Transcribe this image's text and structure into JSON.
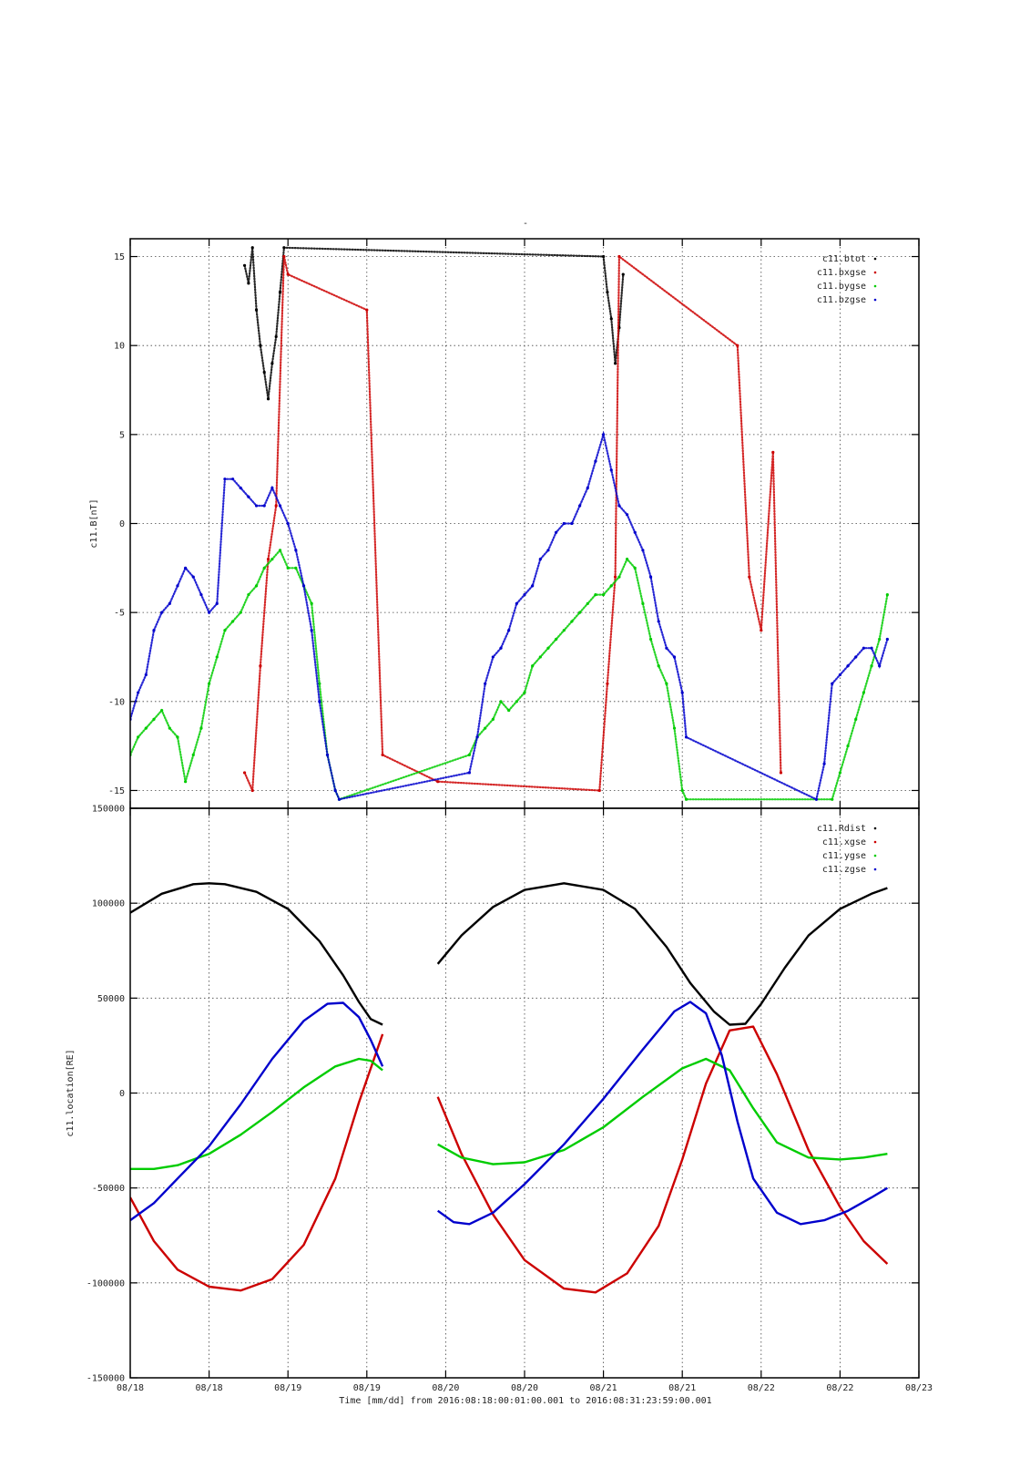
{
  "chart_data": [
    {
      "type": "scatter",
      "title": "-",
      "ylabel": "c11.B[nT]",
      "xlim": [
        0,
        10
      ],
      "ylim": [
        -16,
        16
      ],
      "yticks": [
        -15,
        -10,
        -5,
        0,
        5,
        10,
        15
      ],
      "xticks": [
        0,
        1,
        2,
        3,
        4,
        5,
        6,
        7,
        8,
        9,
        10
      ],
      "xtick_labels": [
        "08/18",
        "08/18",
        "08/19",
        "08/19",
        "08/20",
        "08/20",
        "08/21",
        "08/21",
        "08/22",
        "08/22",
        "08/23"
      ],
      "legend_position": "top-right",
      "grid": true,
      "series": [
        {
          "name": "c11.btot",
          "color": "#000000",
          "x": [
            1.45,
            1.5,
            1.55,
            1.6,
            1.65,
            1.7,
            1.75,
            1.8,
            1.85,
            1.9,
            1.95,
            6.0,
            6.05,
            6.1,
            6.15,
            6.2,
            6.25
          ],
          "y": [
            14.5,
            13.5,
            15.5,
            12.0,
            10.0,
            8.5,
            7.0,
            9.0,
            10.5,
            13.0,
            15.5,
            15.0,
            13.0,
            11.5,
            9.0,
            11.0,
            14.0
          ]
        },
        {
          "name": "c11.bxgse",
          "color": "#cc0000",
          "x": [
            1.45,
            1.55,
            1.65,
            1.75,
            1.85,
            1.95,
            2.0,
            3.0,
            3.2,
            3.9,
            5.95,
            6.05,
            6.15,
            6.2,
            7.7,
            7.85,
            8.0,
            8.15,
            8.25
          ],
          "y": [
            -14.0,
            -15.0,
            -8.0,
            -2.0,
            1.0,
            15.0,
            14.0,
            12.0,
            -13.0,
            -14.5,
            -15.0,
            -9.0,
            -3.0,
            15.0,
            10.0,
            -3.0,
            -6.0,
            4.0,
            -14.0
          ]
        },
        {
          "name": "c11.bygse",
          "color": "#00cc00",
          "x": [
            0.0,
            0.1,
            0.2,
            0.3,
            0.4,
            0.5,
            0.6,
            0.7,
            0.8,
            0.9,
            1.0,
            1.1,
            1.2,
            1.3,
            1.4,
            1.5,
            1.6,
            1.7,
            1.8,
            1.9,
            2.0,
            2.1,
            2.2,
            2.3,
            2.4,
            2.5,
            2.6,
            2.65,
            4.3,
            4.4,
            4.5,
            4.6,
            4.7,
            4.8,
            4.9,
            5.0,
            5.1,
            5.2,
            5.3,
            5.4,
            5.5,
            5.6,
            5.7,
            5.8,
            5.9,
            6.0,
            6.1,
            6.2,
            6.3,
            6.4,
            6.5,
            6.6,
            6.7,
            6.8,
            6.9,
            7.0,
            7.05,
            8.9,
            9.0,
            9.1,
            9.2,
            9.3,
            9.4,
            9.5,
            9.6
          ],
          "y": [
            -13.0,
            -12.0,
            -11.5,
            -11.0,
            -10.5,
            -11.5,
            -12.0,
            -14.5,
            -13.0,
            -11.5,
            -9.0,
            -7.5,
            -6.0,
            -5.5,
            -5.0,
            -4.0,
            -3.5,
            -2.5,
            -2.0,
            -1.5,
            -2.5,
            -2.5,
            -3.5,
            -4.5,
            -9.0,
            -13.0,
            -15.0,
            -15.5,
            -13.0,
            -12.0,
            -11.5,
            -11.0,
            -10.0,
            -10.5,
            -10.0,
            -9.5,
            -8.0,
            -7.5,
            -7.0,
            -6.5,
            -6.0,
            -5.5,
            -5.0,
            -4.5,
            -4.0,
            -4.0,
            -3.5,
            -3.0,
            -2.0,
            -2.5,
            -4.5,
            -6.5,
            -8.0,
            -9.0,
            -11.5,
            -15.0,
            -15.5,
            -15.5,
            -14.0,
            -12.5,
            -11.0,
            -9.5,
            -8.0,
            -6.5,
            -4.0
          ]
        },
        {
          "name": "c11.bzgse",
          "color": "#0000cc",
          "x": [
            0.0,
            0.1,
            0.2,
            0.3,
            0.4,
            0.5,
            0.6,
            0.7,
            0.8,
            0.9,
            1.0,
            1.1,
            1.2,
            1.3,
            1.4,
            1.5,
            1.6,
            1.7,
            1.8,
            1.9,
            2.0,
            2.1,
            2.2,
            2.3,
            2.4,
            2.5,
            2.6,
            2.65,
            4.3,
            4.4,
            4.5,
            4.6,
            4.7,
            4.8,
            4.9,
            5.0,
            5.1,
            5.2,
            5.3,
            5.4,
            5.5,
            5.6,
            5.7,
            5.8,
            5.9,
            6.0,
            6.1,
            6.2,
            6.3,
            6.4,
            6.5,
            6.6,
            6.7,
            6.8,
            6.9,
            7.0,
            7.05,
            8.7,
            8.8,
            8.9,
            9.0,
            9.1,
            9.2,
            9.3,
            9.4,
            9.5,
            9.6
          ],
          "y": [
            -11.0,
            -9.5,
            -8.5,
            -6.0,
            -5.0,
            -4.5,
            -3.5,
            -2.5,
            -3.0,
            -4.0,
            -5.0,
            -4.5,
            2.5,
            2.5,
            2.0,
            1.5,
            1.0,
            1.0,
            2.0,
            1.0,
            0.0,
            -1.5,
            -3.5,
            -6.0,
            -10.0,
            -13.0,
            -15.0,
            -15.5,
            -14.0,
            -12.0,
            -9.0,
            -7.5,
            -7.0,
            -6.0,
            -4.5,
            -4.0,
            -3.5,
            -2.0,
            -1.5,
            -0.5,
            0.0,
            0.0,
            1.0,
            2.0,
            3.5,
            5.0,
            3.0,
            1.0,
            0.5,
            -0.5,
            -1.5,
            -3.0,
            -5.5,
            -7.0,
            -7.5,
            -9.5,
            -12.0,
            -15.5,
            -13.5,
            -9.0,
            -8.5,
            -8.0,
            -7.5,
            -7.0,
            -7.0,
            -8.0,
            -6.5
          ]
        }
      ]
    },
    {
      "type": "line",
      "ylabel": "c11.location[RE]",
      "xlabel": "Time [mm/dd]  from 2016:08:18:00:01:00.001  to  2016:08:31:23:59:00.001",
      "xlim": [
        0,
        10
      ],
      "ylim": [
        -150000,
        150000
      ],
      "yticks": [
        -150000,
        -100000,
        -50000,
        0,
        50000,
        100000,
        150000
      ],
      "xticks": [
        0,
        1,
        2,
        3,
        4,
        5,
        6,
        7,
        8,
        9,
        10
      ],
      "xtick_labels": [
        "08/18",
        "08/18",
        "08/19",
        "08/19",
        "08/20",
        "08/20",
        "08/21",
        "08/21",
        "08/22",
        "08/22",
        "08/23"
      ],
      "legend_position": "top-right",
      "grid": true,
      "series": [
        {
          "name": "c11.Rdist",
          "color": "#000000",
          "segments": [
            {
              "x": [
                0.0,
                0.4,
                0.8,
                1.0,
                1.2,
                1.6,
                2.0,
                2.4,
                2.7,
                2.9,
                3.05,
                3.2
              ],
              "y": [
                95000,
                105000,
                110000,
                110500,
                110000,
                106000,
                97000,
                80000,
                62000,
                48000,
                39000,
                36000
              ]
            },
            {
              "x": [
                3.9,
                4.2,
                4.6,
                5.0,
                5.5,
                6.0,
                6.4,
                6.8,
                7.1,
                7.4,
                7.6,
                7.8,
                8.0,
                8.3,
                8.6,
                9.0,
                9.4,
                9.6
              ],
              "y": [
                68000,
                83000,
                98000,
                107000,
                110500,
                107000,
                97000,
                77000,
                58000,
                43000,
                36000,
                36500,
                47000,
                66000,
                83000,
                97000,
                105000,
                108000
              ]
            }
          ]
        },
        {
          "name": "c11.xgse",
          "color": "#cc0000",
          "segments": [
            {
              "x": [
                0.0,
                0.3,
                0.6,
                1.0,
                1.4,
                1.8,
                2.2,
                2.6,
                2.9,
                3.2
              ],
              "y": [
                -55000,
                -78000,
                -93000,
                -102000,
                -104000,
                -98000,
                -80000,
                -45000,
                -5000,
                31000
              ]
            },
            {
              "x": [
                3.9,
                4.2,
                4.6,
                5.0,
                5.5,
                5.9,
                6.3,
                6.7,
                7.0,
                7.3,
                7.6,
                7.9,
                8.2,
                8.6,
                9.0,
                9.3,
                9.6
              ],
              "y": [
                -2000,
                -32000,
                -64000,
                -88000,
                -103000,
                -105000,
                -95000,
                -70000,
                -35000,
                5000,
                33000,
                35000,
                10000,
                -30000,
                -60000,
                -78000,
                -90000
              ]
            }
          ]
        },
        {
          "name": "c11.ygse",
          "color": "#00cc00",
          "segments": [
            {
              "x": [
                0.0,
                0.3,
                0.6,
                1.0,
                1.4,
                1.8,
                2.2,
                2.6,
                2.9,
                3.05,
                3.2
              ],
              "y": [
                -40000,
                -40000,
                -38000,
                -32000,
                -22000,
                -10000,
                3000,
                14000,
                18000,
                17000,
                12000
              ]
            },
            {
              "x": [
                3.9,
                4.2,
                4.6,
                5.0,
                5.5,
                6.0,
                6.5,
                7.0,
                7.3,
                7.6,
                7.9,
                8.2,
                8.6,
                9.0,
                9.3,
                9.6
              ],
              "y": [
                -27000,
                -34000,
                -37500,
                -36500,
                -30000,
                -18000,
                -2000,
                13000,
                18000,
                12000,
                -8000,
                -26000,
                -34000,
                -35000,
                -34000,
                -32000
              ]
            }
          ]
        },
        {
          "name": "c11.zgse",
          "color": "#0000cc",
          "segments": [
            {
              "x": [
                0.0,
                0.3,
                0.6,
                1.0,
                1.4,
                1.8,
                2.2,
                2.5,
                2.7,
                2.9,
                3.05,
                3.2
              ],
              "y": [
                -67000,
                -58000,
                -45000,
                -28000,
                -6000,
                18000,
                38000,
                47000,
                47500,
                40000,
                28000,
                14000
              ]
            },
            {
              "x": [
                3.9,
                4.1,
                4.3,
                4.6,
                5.0,
                5.5,
                6.0,
                6.5,
                6.9,
                7.1,
                7.3,
                7.5,
                7.7,
                7.9,
                8.2,
                8.5,
                8.8,
                9.1,
                9.4,
                9.6
              ],
              "y": [
                -62000,
                -68000,
                -69000,
                -63000,
                -48000,
                -27000,
                -3000,
                23000,
                43000,
                48000,
                42000,
                20000,
                -15000,
                -45000,
                -63000,
                -69000,
                -67000,
                -62000,
                -55000,
                -50000
              ]
            }
          ]
        }
      ]
    }
  ]
}
